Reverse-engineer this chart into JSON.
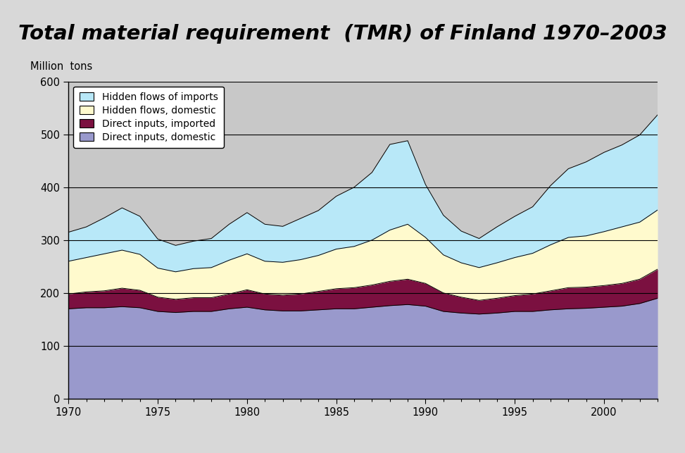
{
  "title": "Total material requirement  (TMR) of Finland 1970–2003",
  "ylabel": "Million  tons",
  "background_outer": "#F4C08A",
  "background_inner": "#C8C8C8",
  "title_fontsize": 21,
  "years": [
    1970,
    1971,
    1972,
    1973,
    1974,
    1975,
    1976,
    1977,
    1978,
    1979,
    1980,
    1981,
    1982,
    1983,
    1984,
    1985,
    1986,
    1987,
    1988,
    1989,
    1990,
    1991,
    1992,
    1993,
    1994,
    1995,
    1996,
    1997,
    1998,
    1999,
    2000,
    2001,
    2002,
    2003
  ],
  "direct_domestic": [
    170,
    172,
    172,
    174,
    172,
    165,
    163,
    165,
    165,
    170,
    173,
    168,
    166,
    166,
    168,
    170,
    170,
    173,
    176,
    178,
    175,
    165,
    162,
    160,
    162,
    165,
    165,
    168,
    170,
    171,
    173,
    175,
    180,
    190
  ],
  "direct_imported": [
    28,
    30,
    32,
    35,
    33,
    27,
    25,
    26,
    26,
    28,
    33,
    30,
    30,
    32,
    35,
    38,
    40,
    42,
    46,
    48,
    43,
    35,
    30,
    26,
    28,
    30,
    33,
    36,
    40,
    40,
    41,
    43,
    46,
    55
  ],
  "hidden_domestic": [
    62,
    65,
    70,
    72,
    68,
    55,
    52,
    55,
    57,
    64,
    68,
    62,
    62,
    65,
    68,
    75,
    78,
    85,
    97,
    104,
    87,
    72,
    65,
    62,
    67,
    72,
    77,
    87,
    95,
    97,
    102,
    107,
    108,
    112
  ],
  "hidden_imports": [
    55,
    58,
    68,
    80,
    72,
    55,
    50,
    52,
    55,
    68,
    78,
    70,
    68,
    78,
    85,
    100,
    112,
    128,
    162,
    158,
    100,
    75,
    60,
    55,
    68,
    78,
    88,
    112,
    130,
    140,
    150,
    155,
    165,
    180
  ],
  "series_colors": [
    "#B8E8F8",
    "#FFFACD",
    "#7B1040",
    "#9999CC"
  ],
  "series_labels": [
    "Hidden flows of imports",
    "Hidden flows, domestic",
    "Direct inputs, imported",
    "Direct inputs, domestic"
  ],
  "ylim": [
    0,
    600
  ],
  "yticks": [
    0,
    100,
    200,
    300,
    400,
    500,
    600
  ],
  "xticks": [
    1970,
    1975,
    1980,
    1985,
    1990,
    1995,
    2000
  ]
}
